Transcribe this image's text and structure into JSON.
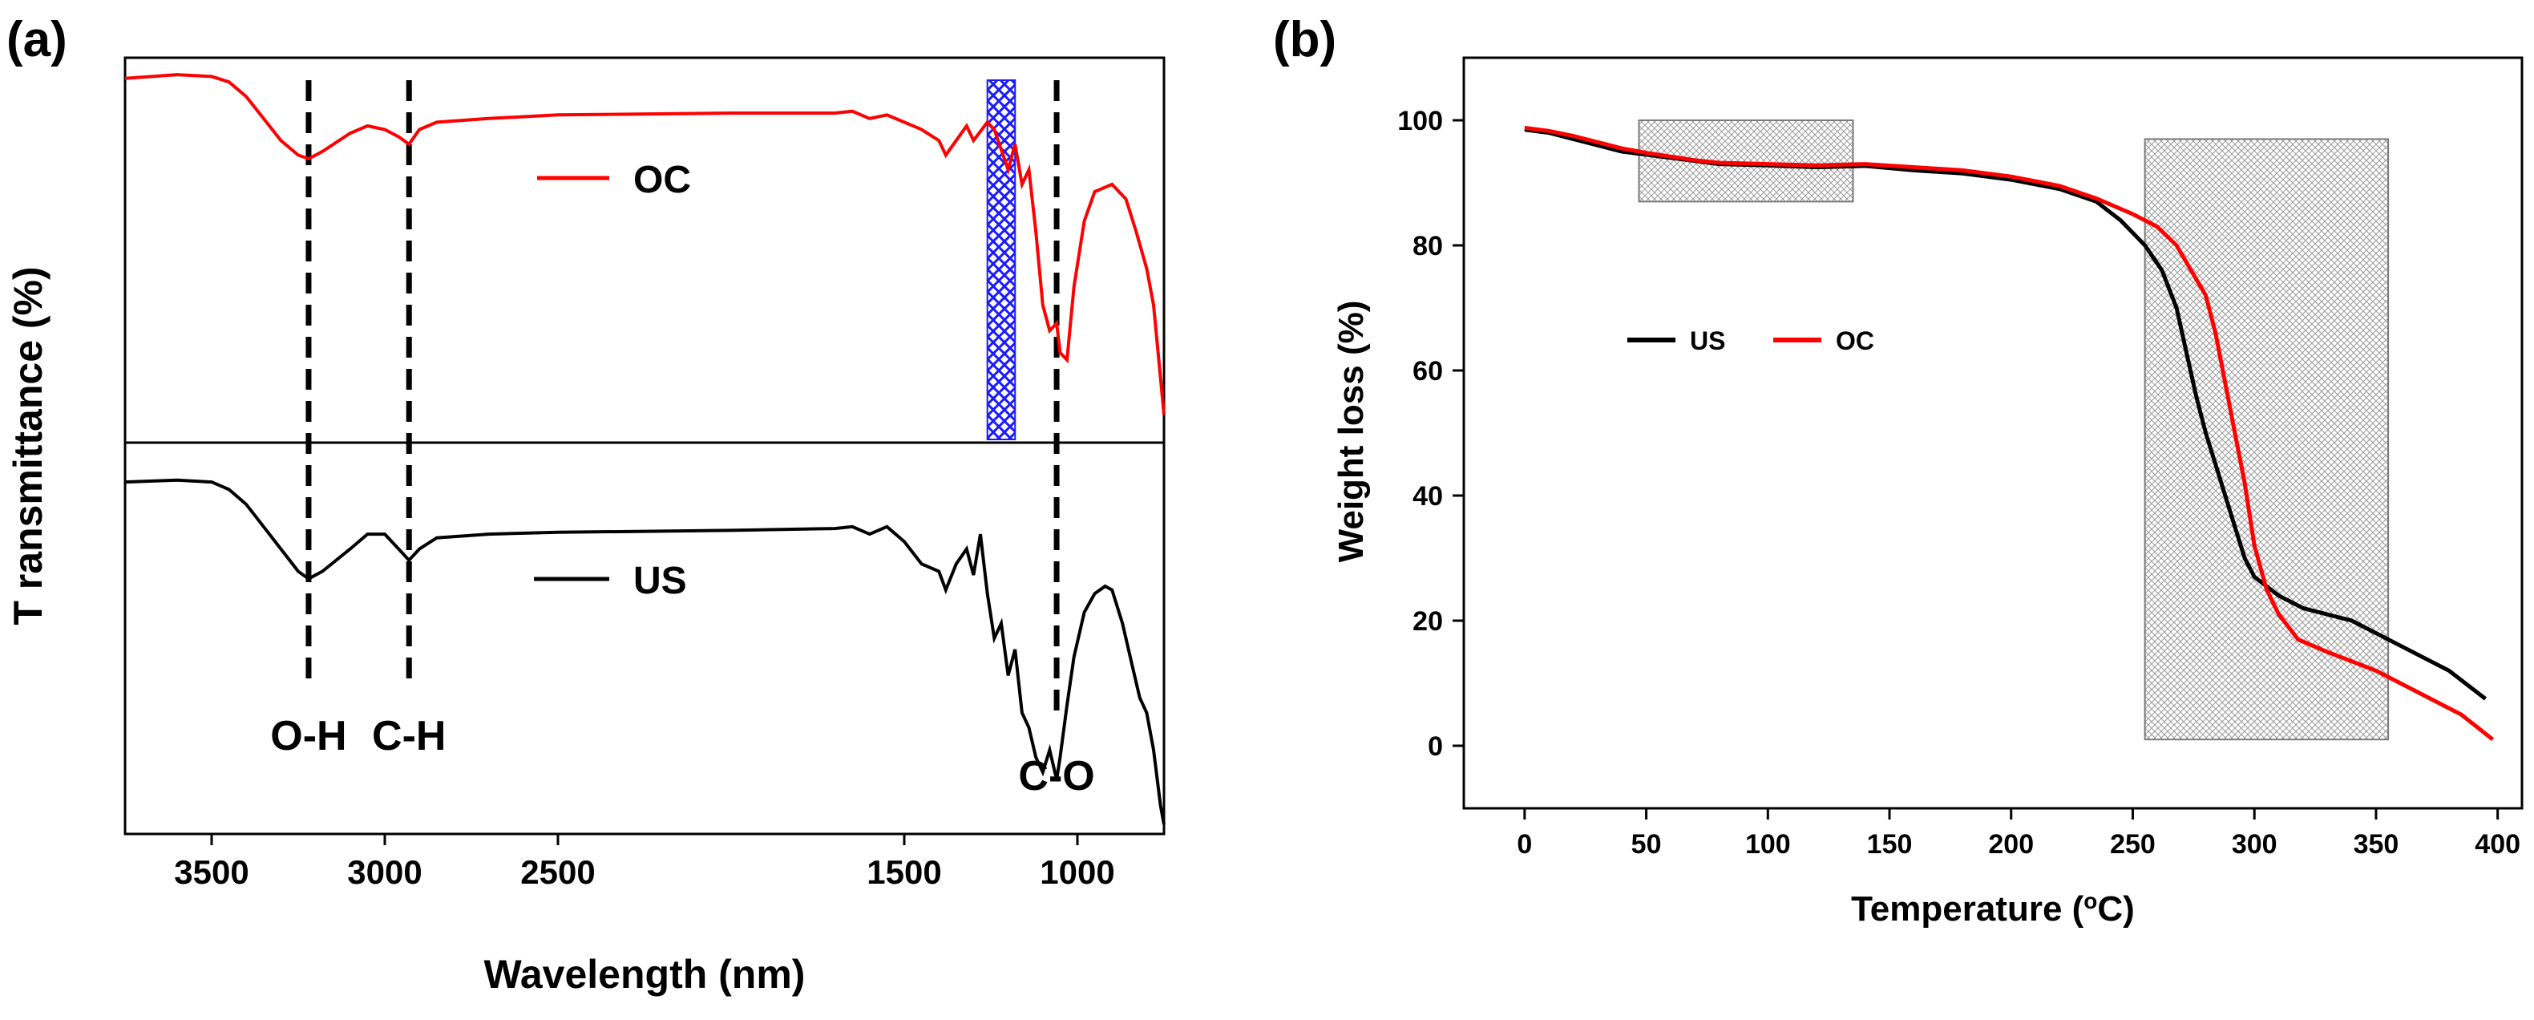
{
  "panels": {
    "a_label": "(a)",
    "b_label": "(b)"
  },
  "chart_data": [
    {
      "type": "line",
      "panel": "(a)",
      "xlabel": "Wavelength (nm)",
      "ylabel": "T ransmittance (%)",
      "x_reversed": true,
      "xlim": [
        3750,
        750
      ],
      "x_ticks": [
        "3500",
        "3000",
        "2500",
        "1500",
        "1000"
      ],
      "x_tick_values": [
        3500,
        3000,
        2500,
        1500,
        1000
      ],
      "stacked_offset": true,
      "series": [
        {
          "name": "OC",
          "color": "#ff0000",
          "points": [
            [
              3750,
              0.97
            ],
            [
              3600,
              0.98
            ],
            [
              3500,
              0.975
            ],
            [
              3450,
              0.96
            ],
            [
              3400,
              0.92
            ],
            [
              3350,
              0.86
            ],
            [
              3300,
              0.8
            ],
            [
              3250,
              0.76
            ],
            [
              3220,
              0.75
            ],
            [
              3180,
              0.77
            ],
            [
              3100,
              0.82
            ],
            [
              3050,
              0.84
            ],
            [
              3000,
              0.83
            ],
            [
              2960,
              0.81
            ],
            [
              2930,
              0.79
            ],
            [
              2900,
              0.83
            ],
            [
              2850,
              0.85
            ],
            [
              2700,
              0.86
            ],
            [
              2500,
              0.87
            ],
            [
              2000,
              0.875
            ],
            [
              1700,
              0.875
            ],
            [
              1650,
              0.88
            ],
            [
              1600,
              0.86
            ],
            [
              1550,
              0.87
            ],
            [
              1500,
              0.85
            ],
            [
              1450,
              0.83
            ],
            [
              1400,
              0.8
            ],
            [
              1380,
              0.76
            ],
            [
              1350,
              0.8
            ],
            [
              1320,
              0.84
            ],
            [
              1300,
              0.8
            ],
            [
              1260,
              0.85
            ],
            [
              1240,
              0.83
            ],
            [
              1200,
              0.72
            ],
            [
              1180,
              0.79
            ],
            [
              1160,
              0.68
            ],
            [
              1140,
              0.72
            ],
            [
              1120,
              0.55
            ],
            [
              1100,
              0.35
            ],
            [
              1080,
              0.28
            ],
            [
              1060,
              0.3
            ],
            [
              1050,
              0.22
            ],
            [
              1030,
              0.2
            ],
            [
              1010,
              0.4
            ],
            [
              980,
              0.58
            ],
            [
              950,
              0.66
            ],
            [
              900,
              0.68
            ],
            [
              860,
              0.64
            ],
            [
              830,
              0.55
            ],
            [
              800,
              0.45
            ],
            [
              780,
              0.35
            ],
            [
              760,
              0.15
            ],
            [
              750,
              0.05
            ]
          ]
        },
        {
          "name": "US",
          "color": "#000000",
          "points": [
            [
              3750,
              0.92
            ],
            [
              3600,
              0.925
            ],
            [
              3500,
              0.92
            ],
            [
              3450,
              0.9
            ],
            [
              3400,
              0.86
            ],
            [
              3350,
              0.8
            ],
            [
              3300,
              0.74
            ],
            [
              3250,
              0.68
            ],
            [
              3220,
              0.66
            ],
            [
              3180,
              0.68
            ],
            [
              3100,
              0.74
            ],
            [
              3050,
              0.78
            ],
            [
              3000,
              0.78
            ],
            [
              2960,
              0.74
            ],
            [
              2930,
              0.71
            ],
            [
              2900,
              0.74
            ],
            [
              2850,
              0.77
            ],
            [
              2700,
              0.78
            ],
            [
              2500,
              0.785
            ],
            [
              2000,
              0.79
            ],
            [
              1700,
              0.795
            ],
            [
              1650,
              0.8
            ],
            [
              1600,
              0.78
            ],
            [
              1550,
              0.8
            ],
            [
              1500,
              0.76
            ],
            [
              1450,
              0.7
            ],
            [
              1400,
              0.68
            ],
            [
              1380,
              0.63
            ],
            [
              1350,
              0.7
            ],
            [
              1320,
              0.74
            ],
            [
              1300,
              0.67
            ],
            [
              1280,
              0.78
            ],
            [
              1260,
              0.62
            ],
            [
              1240,
              0.5
            ],
            [
              1220,
              0.54
            ],
            [
              1200,
              0.4
            ],
            [
              1180,
              0.47
            ],
            [
              1160,
              0.3
            ],
            [
              1140,
              0.26
            ],
            [
              1120,
              0.18
            ],
            [
              1100,
              0.14
            ],
            [
              1080,
              0.2
            ],
            [
              1060,
              0.12
            ],
            [
              1050,
              0.18
            ],
            [
              1030,
              0.32
            ],
            [
              1010,
              0.45
            ],
            [
              980,
              0.57
            ],
            [
              950,
              0.62
            ],
            [
              920,
              0.64
            ],
            [
              900,
              0.63
            ],
            [
              870,
              0.54
            ],
            [
              840,
              0.42
            ],
            [
              820,
              0.34
            ],
            [
              800,
              0.3
            ],
            [
              780,
              0.2
            ],
            [
              760,
              0.05
            ],
            [
              750,
              0.0
            ]
          ]
        }
      ],
      "series_labels": [
        "OC",
        "US"
      ],
      "annotations": [
        {
          "text": "O-H",
          "x": 3220
        },
        {
          "text": "C-H",
          "x": 2930
        },
        {
          "text": "C-O",
          "x": 1060
        }
      ],
      "highlight_band": {
        "x_range": [
          1260,
          1180
        ],
        "color": "#1a1aff"
      }
    },
    {
      "type": "line",
      "panel": "(b)",
      "xlabel": "Temperature (°C)",
      "xlabel_parts": [
        "Temperature (",
        "o",
        "C)"
      ],
      "ylabel": "Weight loss (%)",
      "xlim": [
        -25,
        410
      ],
      "ylim": [
        -10,
        110
      ],
      "x_ticks": [
        0,
        50,
        100,
        150,
        200,
        250,
        300,
        350,
        400
      ],
      "y_ticks": [
        0,
        20,
        40,
        60,
        80,
        100
      ],
      "legend": "center-left",
      "series": [
        {
          "name": "US",
          "color": "#000000",
          "points": [
            [
              0,
              98.5
            ],
            [
              10,
              98
            ],
            [
              20,
              97
            ],
            [
              30,
              96
            ],
            [
              40,
              95
            ],
            [
              50,
              94.5
            ],
            [
              60,
              94
            ],
            [
              70,
              93.5
            ],
            [
              80,
              93
            ],
            [
              100,
              92.8
            ],
            [
              120,
              92.5
            ],
            [
              140,
              92.7
            ],
            [
              160,
              92
            ],
            [
              180,
              91.5
            ],
            [
              200,
              90.5
            ],
            [
              220,
              89
            ],
            [
              235,
              87
            ],
            [
              245,
              84
            ],
            [
              255,
              80
            ],
            [
              262,
              76
            ],
            [
              268,
              70
            ],
            [
              272,
              63
            ],
            [
              276,
              56
            ],
            [
              280,
              50
            ],
            [
              284,
              45
            ],
            [
              288,
              40
            ],
            [
              292,
              35
            ],
            [
              296,
              30
            ],
            [
              300,
              27
            ],
            [
              310,
              24
            ],
            [
              320,
              22
            ],
            [
              340,
              20
            ],
            [
              360,
              16
            ],
            [
              380,
              12
            ],
            [
              395,
              7.5
            ]
          ]
        },
        {
          "name": "OC",
          "color": "#ff0000",
          "points": [
            [
              0,
              98.8
            ],
            [
              10,
              98.3
            ],
            [
              20,
              97.5
            ],
            [
              30,
              96.5
            ],
            [
              40,
              95.5
            ],
            [
              50,
              94.8
            ],
            [
              60,
              94.2
            ],
            [
              70,
              93.6
            ],
            [
              80,
              93.2
            ],
            [
              100,
              93
            ],
            [
              120,
              92.8
            ],
            [
              140,
              93
            ],
            [
              160,
              92.5
            ],
            [
              180,
              92
            ],
            [
              200,
              91
            ],
            [
              220,
              89.5
            ],
            [
              235,
              87.5
            ],
            [
              250,
              85
            ],
            [
              260,
              83
            ],
            [
              268,
              80
            ],
            [
              274,
              76
            ],
            [
              280,
              72
            ],
            [
              284,
              66
            ],
            [
              288,
              58
            ],
            [
              292,
              50
            ],
            [
              296,
              42
            ],
            [
              300,
              32
            ],
            [
              305,
              25
            ],
            [
              310,
              21
            ],
            [
              318,
              17
            ],
            [
              330,
              15
            ],
            [
              350,
              12
            ],
            [
              370,
              8
            ],
            [
              385,
              5
            ],
            [
              398,
              1
            ]
          ]
        }
      ],
      "hatched_regions": [
        {
          "x_range": [
            47,
            135
          ],
          "y_range": [
            87,
            100
          ]
        },
        {
          "x_range": [
            255,
            355
          ],
          "y_range": [
            1,
            97
          ]
        }
      ]
    }
  ]
}
